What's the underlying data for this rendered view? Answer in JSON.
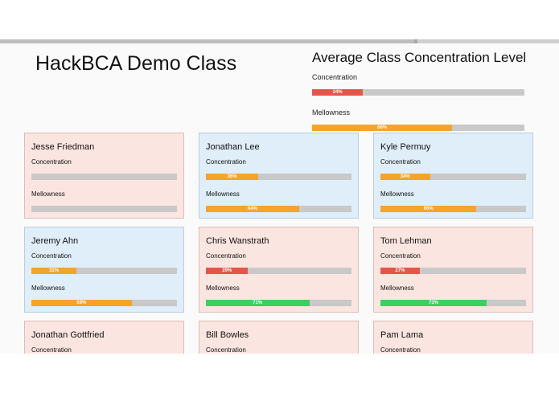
{
  "page_title": "HackBCA Demo Class",
  "average": {
    "title": "Average Class Concentration Level",
    "concentration_label": "Concentration",
    "concentration": {
      "value": 24,
      "text": "24%",
      "color": "red"
    },
    "mellowness_label": "Mellowness",
    "mellowness": {
      "value": 66,
      "text": "66%",
      "color": "orange"
    }
  },
  "students": [
    {
      "name": "Jesse Friedman",
      "state": "low",
      "concentration_label": "Concentration",
      "concentration": {
        "value": 0,
        "text": "",
        "color": "red"
      },
      "mellowness_label": "Mellowness",
      "mellowness": {
        "value": 0,
        "text": "",
        "color": "orange"
      }
    },
    {
      "name": "Jonathan Lee",
      "state": "high",
      "concentration_label": "Concentration",
      "concentration": {
        "value": 36,
        "text": "36%",
        "color": "orange"
      },
      "mellowness_label": "Mellowness",
      "mellowness": {
        "value": 64,
        "text": "64%",
        "color": "orange"
      }
    },
    {
      "name": "Kyle Permuy",
      "state": "high",
      "concentration_label": "Concentration",
      "concentration": {
        "value": 34,
        "text": "34%",
        "color": "orange"
      },
      "mellowness_label": "Mellowness",
      "mellowness": {
        "value": 66,
        "text": "66%",
        "color": "orange"
      }
    },
    {
      "name": "Jeremy Ahn",
      "state": "high",
      "concentration_label": "Concentration",
      "concentration": {
        "value": 31,
        "text": "31%",
        "color": "orange"
      },
      "mellowness_label": "Mellowness",
      "mellowness": {
        "value": 69,
        "text": "69%",
        "color": "orange"
      }
    },
    {
      "name": "Chris Wanstrath",
      "state": "low",
      "concentration_label": "Concentration",
      "concentration": {
        "value": 29,
        "text": "29%",
        "color": "red"
      },
      "mellowness_label": "Mellowness",
      "mellowness": {
        "value": 71,
        "text": "71%",
        "color": "green"
      }
    },
    {
      "name": "Tom Lehman",
      "state": "low",
      "concentration_label": "Concentration",
      "concentration": {
        "value": 27,
        "text": "27%",
        "color": "red"
      },
      "mellowness_label": "Mellowness",
      "mellowness": {
        "value": 73,
        "text": "73%",
        "color": "green"
      }
    },
    {
      "name": "Jonathan Gottfried",
      "state": "low",
      "concentration_label": "Concentration"
    },
    {
      "name": "Bill Bowles",
      "state": "low",
      "concentration_label": "Concentration"
    },
    {
      "name": "Pam Lama",
      "state": "low",
      "concentration_label": "Concentration"
    }
  ]
}
